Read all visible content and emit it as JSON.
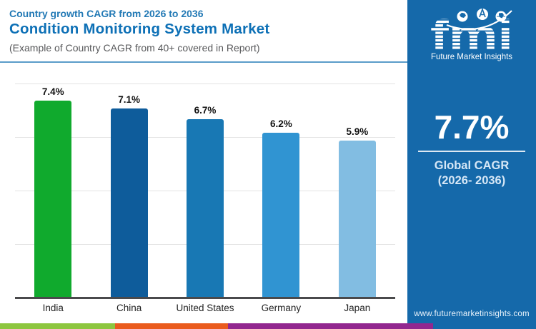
{
  "header": {
    "eyebrow": "Country growth CAGR from 2026 to 2036",
    "title": "Condition Monitoring System Market",
    "subtitle": "(Example of Country CAGR from 40+ covered in Report)"
  },
  "chart_data": {
    "type": "bar",
    "title": "Country growth CAGR from 2026 to 2036 - Condition Monitoring System Market",
    "categories": [
      "India",
      "China",
      "United States",
      "Germany",
      "Japan"
    ],
    "values": [
      7.4,
      7.1,
      6.7,
      6.2,
      5.9
    ],
    "value_labels": [
      "7.4%",
      "7.1%",
      "6.7%",
      "6.2%",
      "5.9%"
    ],
    "bar_colors": [
      "#10aa2d",
      "#0e5c9b",
      "#1878b4",
      "#3094d2",
      "#82bde2"
    ],
    "unit": "%",
    "xlabel": "",
    "ylabel": "",
    "ylim": [
      0,
      8.5
    ],
    "gridline_values": [
      2,
      4,
      6,
      8
    ],
    "grid": true,
    "legend": false
  },
  "sidebar": {
    "background": "#1569aa",
    "logo": {
      "text": "fmi",
      "caption": "Future Market Insights",
      "icons": [
        "americas-globe-icon",
        "asia-globe-icon",
        "africa-globe-icon"
      ]
    },
    "stat": {
      "value": "7.7%",
      "label_line1": "Global CAGR",
      "label_line2": "(2026- 2036)"
    },
    "website": "www.futuremarketinsights.com"
  },
  "footer": {
    "stripe_colors": [
      "#8dc63f",
      "#ea5b1e",
      "#92278f"
    ]
  },
  "colors": {
    "separator": "#5b9cc9",
    "gridline": "#e3e3e3",
    "axis": "#4a4a4c",
    "value_label": "#111111",
    "category_label": "#222222"
  }
}
